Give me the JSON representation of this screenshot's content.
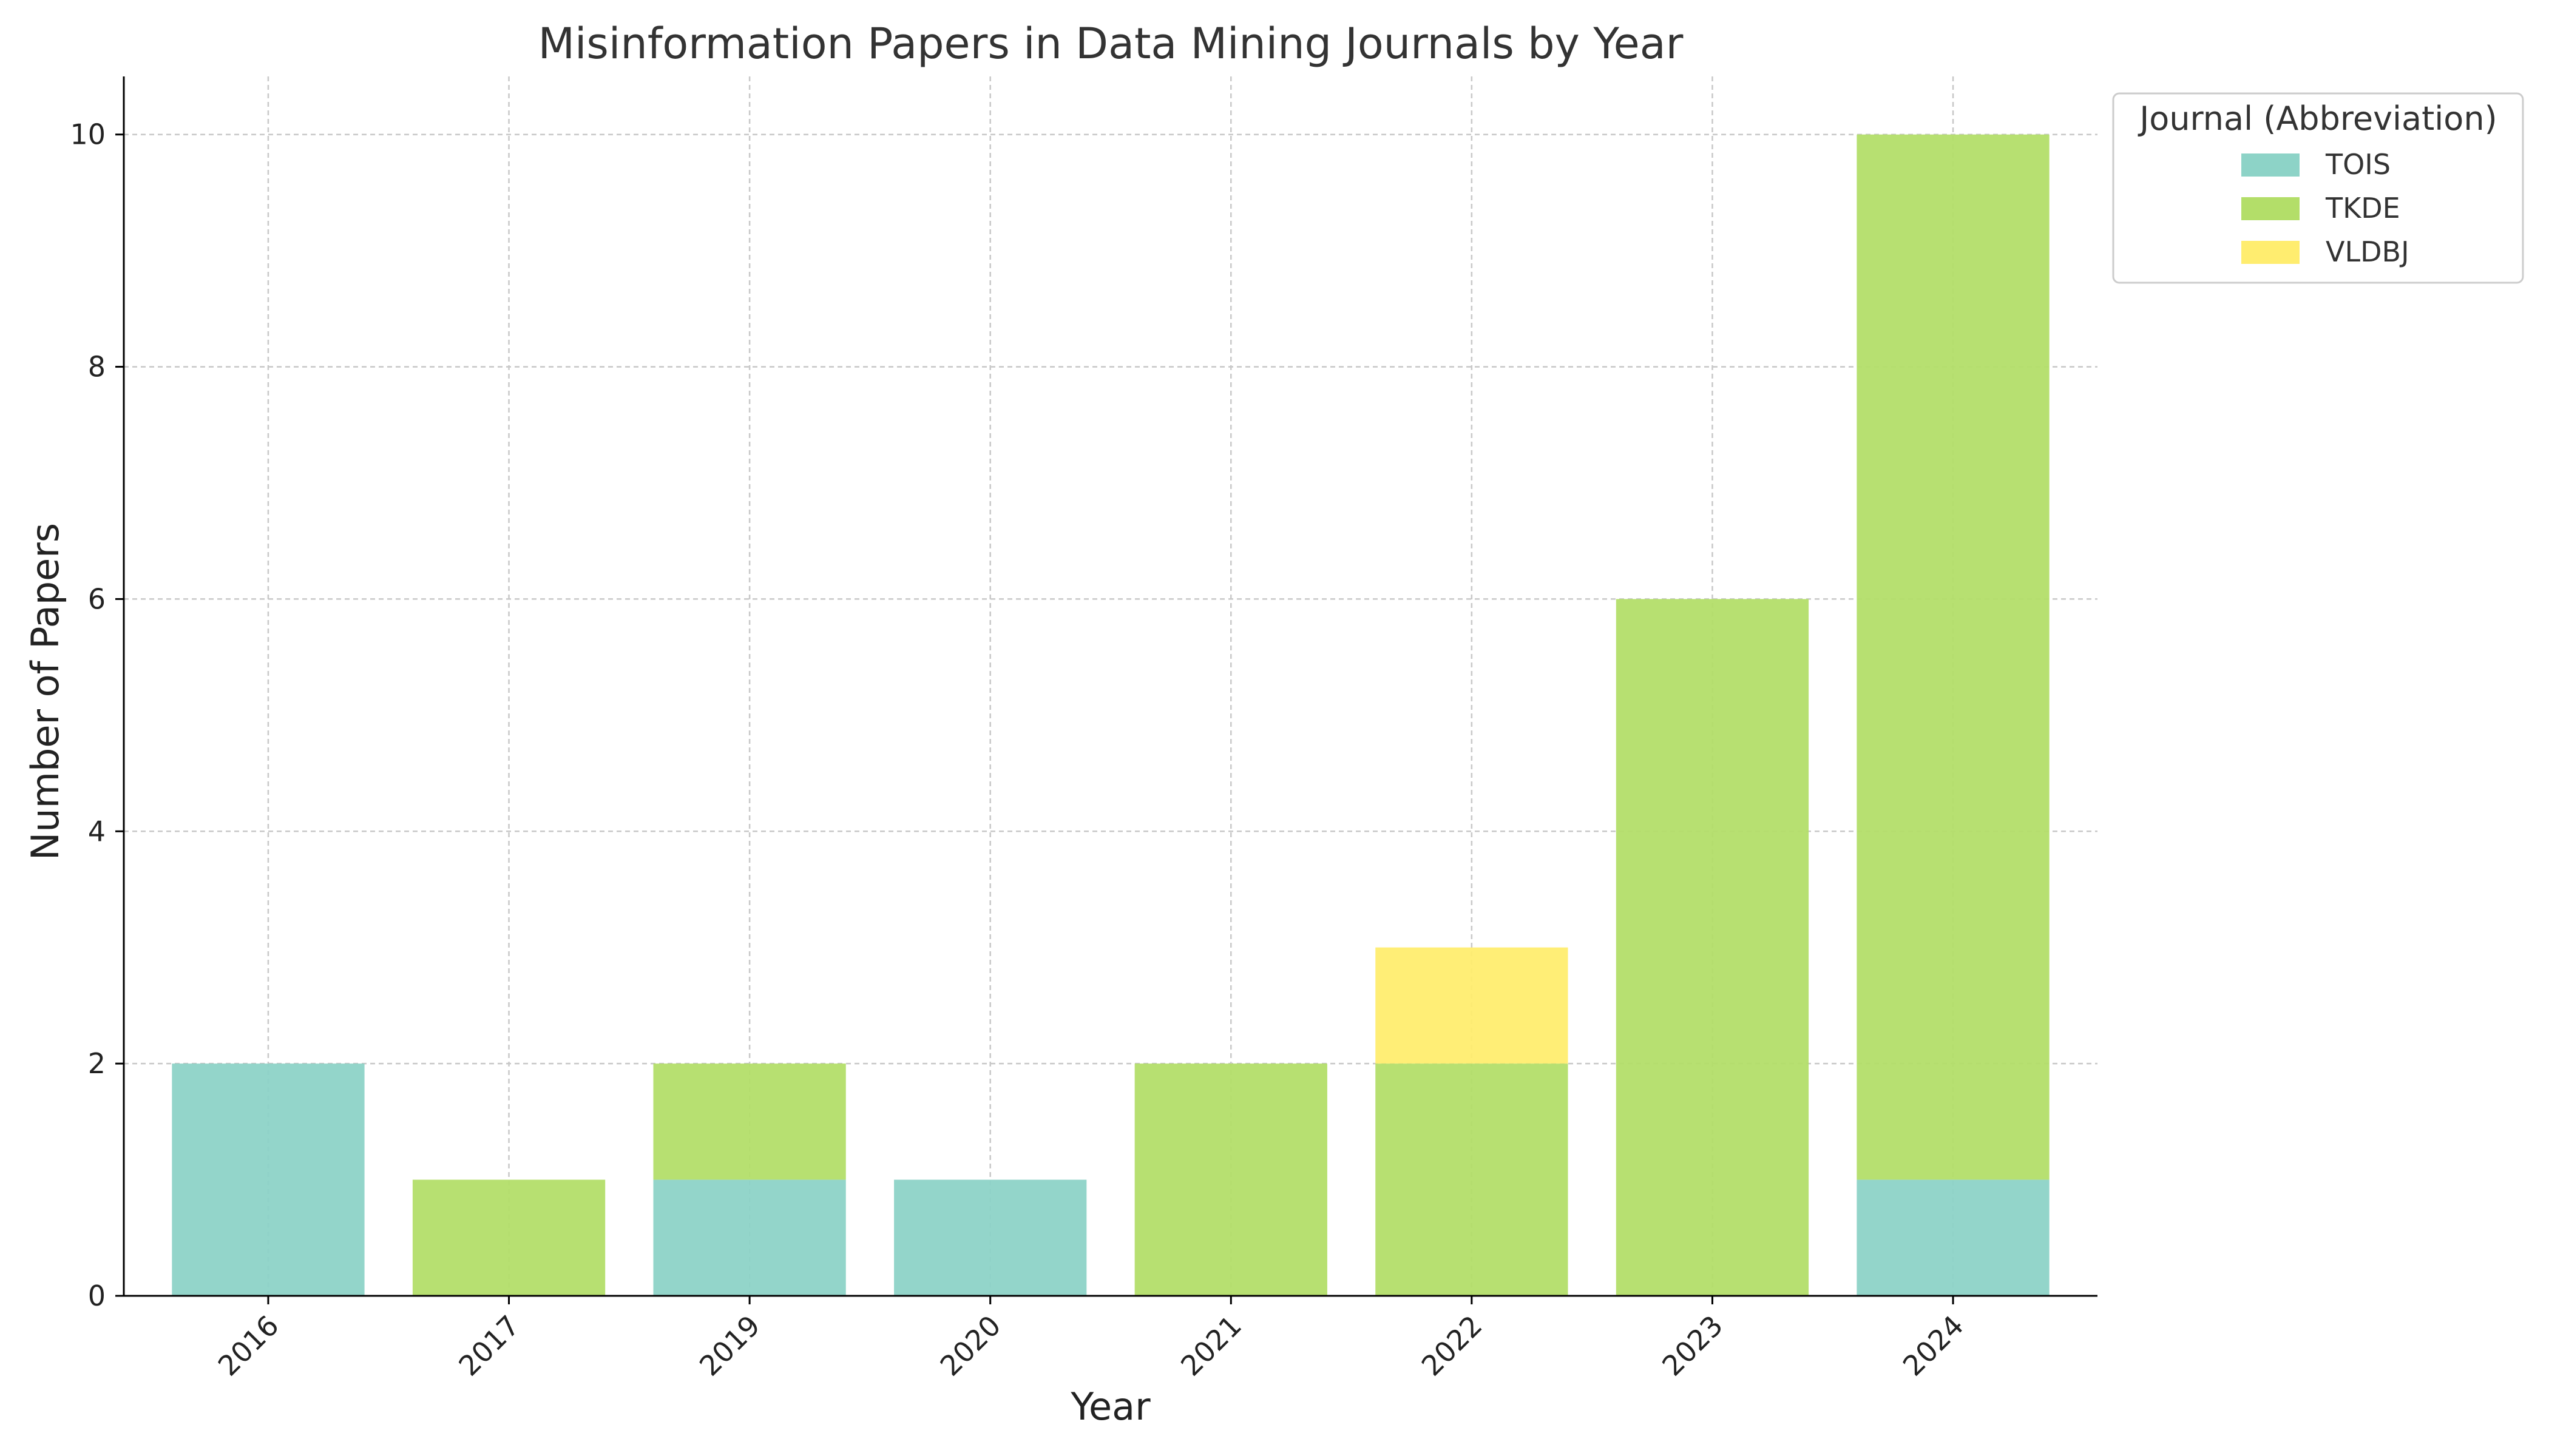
{
  "chart_data": {
    "type": "bar",
    "stacked": true,
    "title": "Misinformation Papers in Data Mining Journals by Year",
    "xlabel": "Year",
    "ylabel": "Number of Papers",
    "categories": [
      "2016",
      "2017",
      "2019",
      "2020",
      "2021",
      "2022",
      "2023",
      "2024"
    ],
    "series": [
      {
        "name": "TOIS",
        "color": "#8dd3c7",
        "values": [
          2,
          0,
          1,
          1,
          0,
          0,
          0,
          1
        ]
      },
      {
        "name": "TKDE",
        "color": "#b3de69",
        "values": [
          0,
          1,
          1,
          0,
          2,
          2,
          6,
          9
        ]
      },
      {
        "name": "VLDBJ",
        "color": "#ffed6f",
        "values": [
          0,
          0,
          0,
          0,
          0,
          1,
          0,
          0
        ]
      }
    ],
    "ylim": [
      0,
      10.5
    ],
    "yticks": [
      0,
      2,
      4,
      6,
      8,
      10
    ],
    "grid": true,
    "legend": {
      "title": "Journal (Abbreviation)",
      "placement": "outside upper-right"
    }
  }
}
